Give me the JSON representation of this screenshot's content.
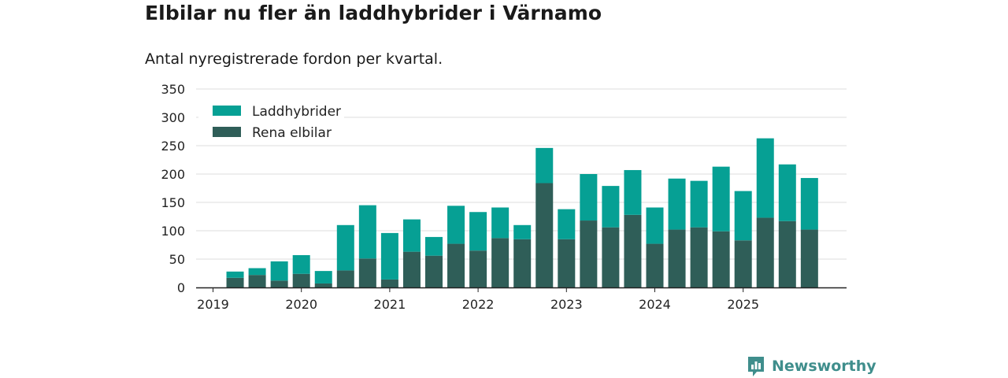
{
  "title": "Elbilar nu fler än laddhybrider i Värnamo",
  "subtitle": "Antal nyregistrerade fordon per kvartal.",
  "brand": "Newsworthy",
  "colors": {
    "laddhybrider": "#06a094",
    "rena_elbilar": "#2f5e58",
    "grid": "#dcdcdc",
    "axis": "#222222",
    "brand": "#3f8e8c"
  },
  "chart_data": {
    "type": "bar",
    "stacked": true,
    "title": "Elbilar nu fler än laddhybrider i Värnamo",
    "subtitle": "Antal nyregistrerade fordon per kvartal.",
    "xlabel": "",
    "ylabel": "",
    "ylim": [
      0,
      350
    ],
    "yticks": [
      0,
      50,
      100,
      150,
      200,
      250,
      300,
      350
    ],
    "xticks": [
      "2019",
      "2020",
      "2021",
      "2022",
      "2023",
      "2024",
      "2025"
    ],
    "grid": true,
    "legend_position": "top-left",
    "categories": [
      "2019 Q1",
      "2019 Q2",
      "2019 Q3",
      "2019 Q4",
      "2020 Q1",
      "2020 Q2",
      "2020 Q3",
      "2020 Q4",
      "2021 Q1",
      "2021 Q2",
      "2021 Q3",
      "2021 Q4",
      "2022 Q1",
      "2022 Q2",
      "2022 Q3",
      "2022 Q4",
      "2023 Q1",
      "2023 Q2",
      "2023 Q3",
      "2023 Q4",
      "2024 Q1",
      "2024 Q2",
      "2024 Q3",
      "2024 Q4",
      "2025 Q1",
      "2025 Q2",
      "2025 Q3",
      "2025 Q4"
    ],
    "series": [
      {
        "name": "Rena elbilar",
        "values": [
          0,
          17,
          22,
          12,
          24,
          7,
          30,
          51,
          14,
          63,
          56,
          77,
          65,
          87,
          85,
          184,
          85,
          118,
          106,
          128,
          77,
          102,
          106,
          99,
          83,
          123,
          117,
          102
        ]
      },
      {
        "name": "Laddhybrider",
        "values": [
          0,
          11,
          12,
          34,
          33,
          22,
          80,
          94,
          82,
          57,
          33,
          67,
          68,
          54,
          25,
          62,
          53,
          82,
          73,
          79,
          64,
          90,
          82,
          114,
          87,
          140,
          100,
          91
        ]
      }
    ]
  }
}
